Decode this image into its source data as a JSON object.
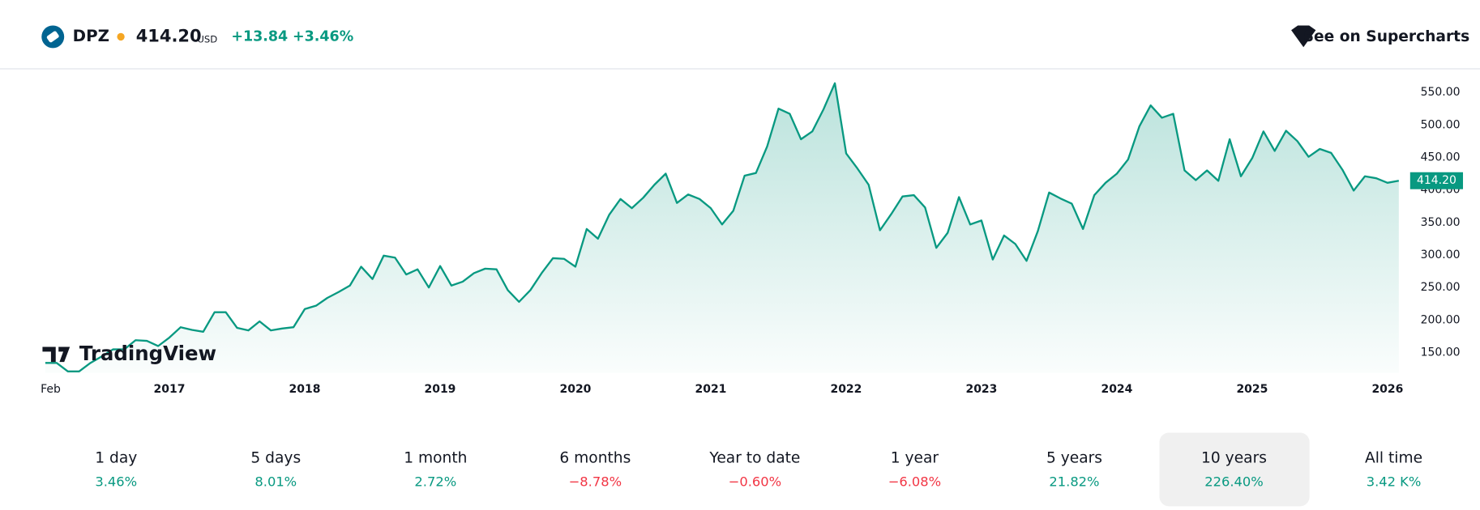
{
  "header": {
    "symbol": "DPZ",
    "price": "414.20",
    "currency": "USD",
    "change": "+13.84",
    "change_pct": "+3.46%",
    "button": "See on Supercharts"
  },
  "watermark": "TradingView",
  "chart_data": {
    "type": "line",
    "color": "#089981",
    "x": [
      "2016-02",
      "2016-03",
      "2016-04",
      "2016-05",
      "2016-06",
      "2016-07",
      "2016-08",
      "2016-09",
      "2016-10",
      "2016-11",
      "2016-12",
      "2017-01",
      "2017-02",
      "2017-03",
      "2017-04",
      "2017-05",
      "2017-06",
      "2017-07",
      "2017-08",
      "2017-09",
      "2017-10",
      "2017-11",
      "2017-12",
      "2018-01",
      "2018-02",
      "2018-03",
      "2018-04",
      "2018-05",
      "2018-06",
      "2018-07",
      "2018-08",
      "2018-09",
      "2018-10",
      "2018-11",
      "2018-12",
      "2019-01",
      "2019-02",
      "2019-03",
      "2019-04",
      "2019-05",
      "2019-06",
      "2019-07",
      "2019-08",
      "2019-09",
      "2019-10",
      "2019-11",
      "2019-12",
      "2020-01",
      "2020-02",
      "2020-03",
      "2020-04",
      "2020-05",
      "2020-06",
      "2020-07",
      "2020-08",
      "2020-09",
      "2020-10",
      "2020-11",
      "2020-12",
      "2021-01",
      "2021-02",
      "2021-03",
      "2021-04",
      "2021-05",
      "2021-06",
      "2021-07",
      "2021-08",
      "2021-09",
      "2021-10",
      "2021-11",
      "2021-12",
      "2022-01",
      "2022-02",
      "2022-03",
      "2022-04",
      "2022-05",
      "2022-06",
      "2022-07",
      "2022-08",
      "2022-09",
      "2022-10",
      "2022-11",
      "2022-12",
      "2023-01",
      "2023-02",
      "2023-03",
      "2023-04",
      "2023-05",
      "2023-06",
      "2023-07",
      "2023-08",
      "2023-09",
      "2023-10",
      "2023-11",
      "2023-12",
      "2024-01",
      "2024-02",
      "2024-03",
      "2024-04",
      "2024-05",
      "2024-06",
      "2024-07",
      "2024-08",
      "2024-09",
      "2024-10",
      "2024-11",
      "2024-12",
      "2025-01",
      "2025-02",
      "2025-03",
      "2025-04",
      "2025-05",
      "2025-06",
      "2025-07",
      "2025-08",
      "2025-09",
      "2025-10",
      "2025-11",
      "2025-12",
      "2026-01",
      "2026-02"
    ],
    "values": [
      134,
      134,
      121,
      121,
      134,
      144,
      155,
      155,
      169,
      168,
      160,
      173,
      189,
      185,
      182,
      212,
      212,
      188,
      184,
      198,
      184,
      187,
      189,
      217,
      222,
      234,
      243,
      253,
      282,
      263,
      299,
      296,
      270,
      278,
      250,
      283,
      253,
      259,
      272,
      279,
      278,
      246,
      228,
      246,
      272,
      295,
      294,
      282,
      340,
      325,
      362,
      386,
      372,
      388,
      408,
      425,
      380,
      393,
      386,
      372,
      347,
      368,
      422,
      426,
      467,
      525,
      517,
      478,
      490,
      524,
      564,
      456,
      433,
      408,
      338,
      363,
      390,
      392,
      373,
      311,
      334,
      389,
      347,
      353,
      293,
      330,
      317,
      291,
      337,
      396,
      387,
      379,
      340,
      392,
      411,
      425,
      447,
      498,
      530,
      511,
      517,
      430,
      415,
      430,
      414,
      478,
      421,
      449,
      490,
      460,
      491,
      475,
      451,
      463,
      457,
      431,
      399,
      421,
      418,
      411,
      414.2
    ],
    "ylim": [
      119,
      583
    ],
    "yticks": [
      {
        "value": 150,
        "label": "150.00"
      },
      {
        "value": 200,
        "label": "200.00"
      },
      {
        "value": 250,
        "label": "250.00"
      },
      {
        "value": 300,
        "label": "300.00"
      },
      {
        "value": 350,
        "label": "350.00"
      },
      {
        "value": 400,
        "label": "400.00"
      },
      {
        "value": 450,
        "label": "450.00"
      },
      {
        "value": 500,
        "label": "500.00"
      },
      {
        "value": 550,
        "label": "550.00"
      }
    ],
    "xticks": [
      {
        "value": "2016-02",
        "label": "Feb"
      },
      {
        "value": "2017-01",
        "label": "2017"
      },
      {
        "value": "2018-01",
        "label": "2018"
      },
      {
        "value": "2019-01",
        "label": "2019"
      },
      {
        "value": "2020-01",
        "label": "2020"
      },
      {
        "value": "2021-01",
        "label": "2021"
      },
      {
        "value": "2022-01",
        "label": "2022"
      },
      {
        "value": "2023-01",
        "label": "2023"
      },
      {
        "value": "2024-01",
        "label": "2024"
      },
      {
        "value": "2025-01",
        "label": "2025"
      },
      {
        "value": "2026-01",
        "label": "2026"
      }
    ],
    "grid": false
  },
  "periods": [
    {
      "label": "1 day",
      "value": "3.46%",
      "selected": false
    },
    {
      "label": "5 days",
      "value": "8.01%",
      "selected": false
    },
    {
      "label": "1 month",
      "value": "2.72%",
      "selected": false
    },
    {
      "label": "6 months",
      "value": "−8.78%",
      "selected": false
    },
    {
      "label": "Year to date",
      "value": "−0.60%",
      "selected": false
    },
    {
      "label": "1 year",
      "value": "−6.08%",
      "selected": false
    },
    {
      "label": "5 years",
      "value": "21.82%",
      "selected": false
    },
    {
      "label": "10 years",
      "value": "226.40%",
      "selected": true
    },
    {
      "label": "All time",
      "value": "3.42 K%",
      "selected": false
    }
  ]
}
